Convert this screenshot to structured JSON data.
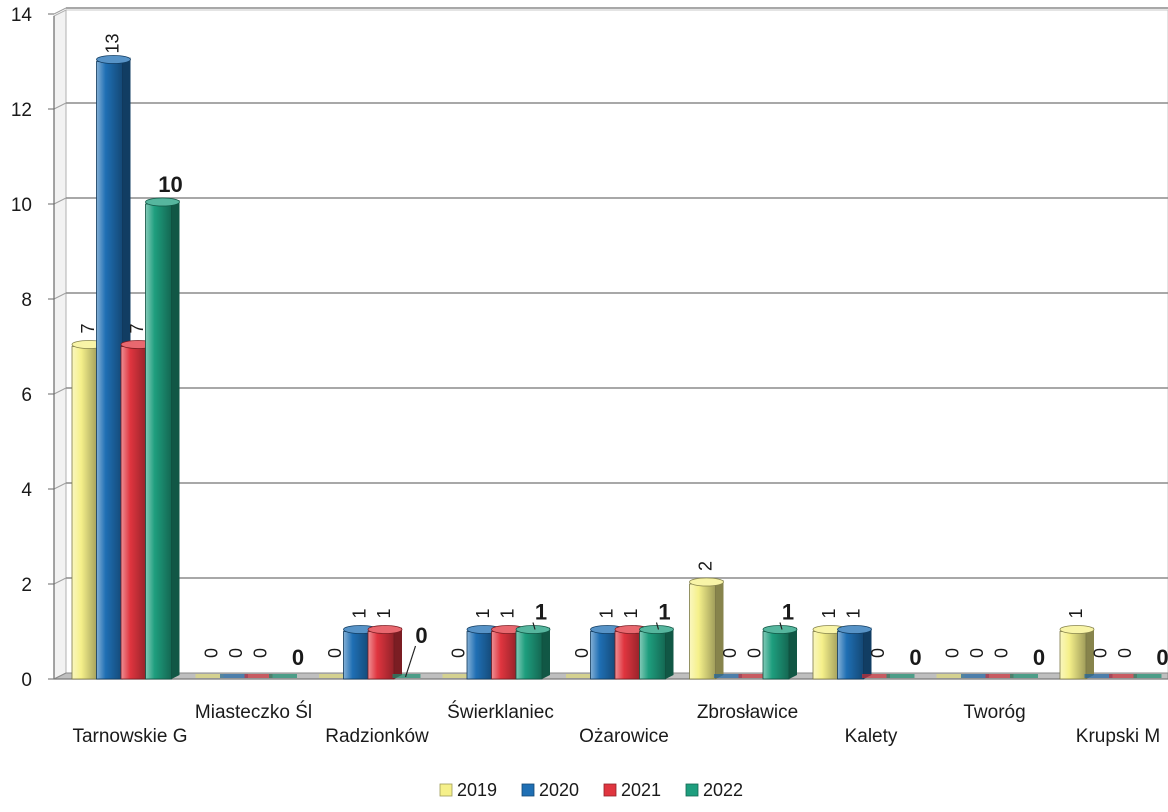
{
  "chart_data": {
    "type": "bar",
    "categories": [
      "Tarnowskie G",
      "Miasteczko Śl",
      "Radzionków",
      "Świerklaniec",
      "Ożarowice",
      "Zbrosławice",
      "Kalety",
      "Tworóg",
      "Krupski M"
    ],
    "series": [
      {
        "name": "2019",
        "color": "#f5f08a",
        "values": [
          7,
          0,
          0,
          0,
          0,
          2,
          1,
          0,
          1
        ]
      },
      {
        "name": "2020",
        "color": "#1f6fb4",
        "values": [
          13,
          0,
          1,
          1,
          1,
          0,
          1,
          0,
          0
        ]
      },
      {
        "name": "2021",
        "color": "#e0353f",
        "values": [
          7,
          0,
          1,
          1,
          1,
          0,
          0,
          0,
          0
        ]
      },
      {
        "name": "2022",
        "color": "#1e9e7e",
        "values": [
          10,
          0,
          0,
          1,
          1,
          1,
          0,
          0,
          0
        ]
      }
    ],
    "ylim": [
      0,
      14
    ],
    "yticks": [
      "0",
      "2",
      "4",
      "6",
      "8",
      "10",
      "12",
      "14"
    ],
    "grid": true,
    "legend_position": "bottom",
    "data_labels": {
      "2019": [
        "7",
        "0",
        "0",
        "0",
        "0",
        "2",
        "1",
        "0",
        "1"
      ],
      "2020": [
        "13",
        "0",
        "1",
        "1",
        "1",
        "0",
        "1",
        "0",
        "0"
      ],
      "2021": [
        "7",
        "0",
        "1",
        "1",
        "1",
        "0",
        "0",
        "0",
        "0"
      ],
      "2022": [
        "10",
        "0",
        "0",
        "1",
        "1",
        "1",
        "0",
        "0",
        "0"
      ]
    }
  }
}
